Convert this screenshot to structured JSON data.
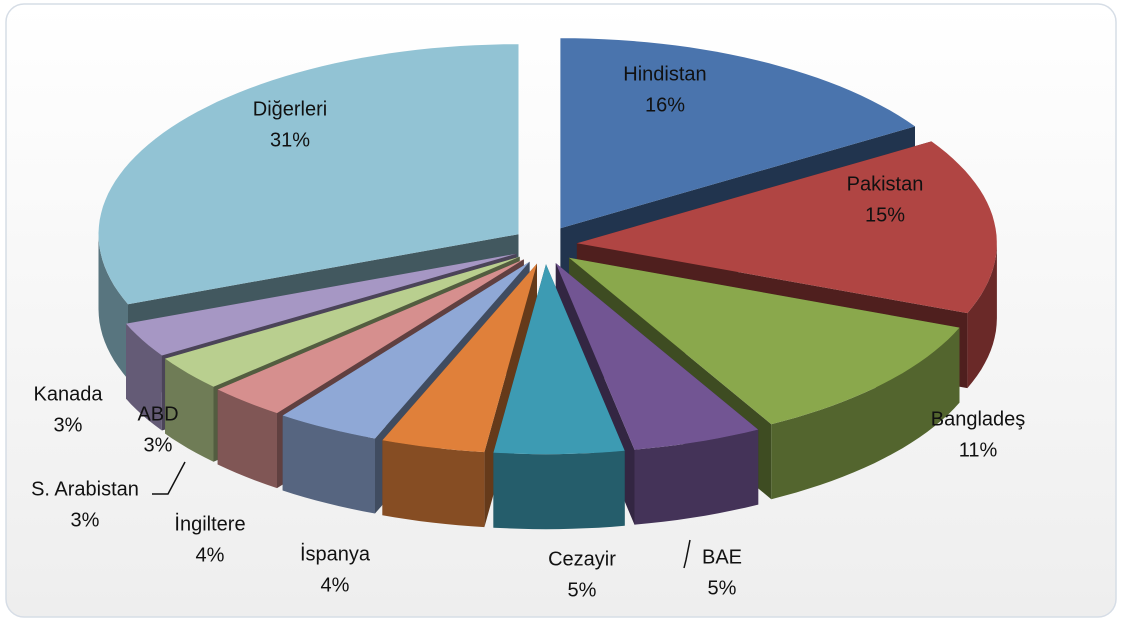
{
  "chart_data": {
    "type": "pie",
    "categories": [
      "Hindistan",
      "Pakistan",
      "Bangladeş",
      "BAE",
      "Cezayir",
      "İspanya",
      "İngiltere",
      "S. Arabistan",
      "ABD",
      "Kanada",
      "Diğerleri"
    ],
    "values": [
      16,
      15,
      11,
      5,
      5,
      4,
      4,
      3,
      3,
      3,
      31
    ],
    "value_labels": [
      "16%",
      "15%",
      "11%",
      "5%",
      "5%",
      "4%",
      "4%",
      "3%",
      "3%",
      "3%",
      "31%"
    ],
    "colors": [
      "#4a74ad",
      "#b04543",
      "#8aa84c",
      "#725593",
      "#3d9bb3",
      "#e0803a",
      "#8fa8d6",
      "#d68f8e",
      "#b9cf8f",
      "#a697c4",
      "#92c3d4"
    ]
  }
}
